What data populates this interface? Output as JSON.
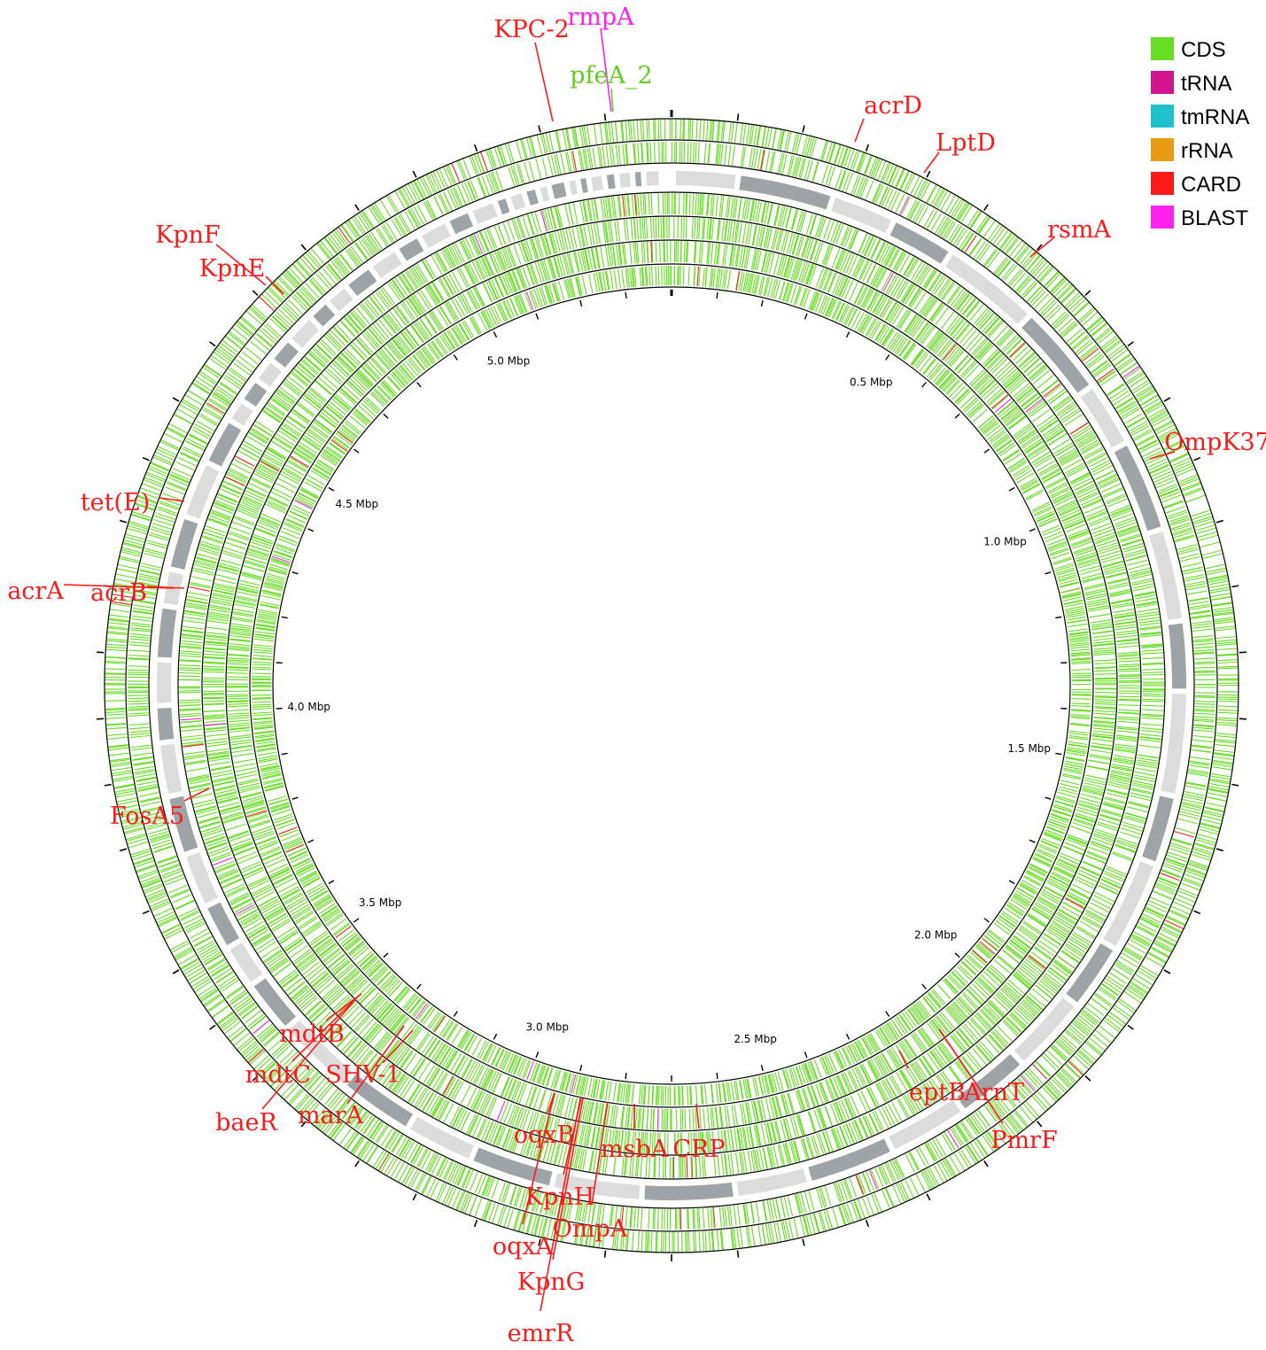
{
  "legend": [
    {
      "label": "CDS",
      "color": "#66dd22"
    },
    {
      "label": "tRNA",
      "color": "#d4148c"
    },
    {
      "label": "tmRNA",
      "color": "#20c0cc"
    },
    {
      "label": "rRNA",
      "color": "#e89a14"
    },
    {
      "label": "CARD",
      "color": "#ff1a1a"
    },
    {
      "label": "BLAST",
      "color": "#ff22ee"
    }
  ],
  "genome": {
    "total_mbp": 5.4,
    "scale_labels": [
      "0.5 Mbp",
      "1.0 Mbp",
      "1.5 Mbp",
      "2.0 Mbp",
      "2.5 Mbp",
      "3.0 Mbp",
      "3.5 Mbp",
      "4.0 Mbp",
      "4.5 Mbp",
      "5.0 Mbp"
    ],
    "scale_positions_mbp": [
      0.5,
      1.0,
      1.5,
      2.0,
      2.5,
      3.0,
      3.5,
      4.0,
      4.5,
      5.0
    ]
  },
  "colors": {
    "cds": "#66dd22",
    "card": "#ff1a1a",
    "blast": "#ff22ee",
    "contig_dark": "#9ea3a8",
    "contig_light": "#dcdcdc",
    "ring": "#000000"
  },
  "genes": [
    {
      "label": "KPC-2",
      "color": "#ff1a1a",
      "angle": -15
    },
    {
      "label": "rmpA",
      "color": "#ff22ee",
      "angle": -9
    },
    {
      "label": "pfeA_2",
      "color": "#66cc22",
      "angle": -8
    },
    {
      "label": "acrD",
      "color": "#ff1a1a",
      "angle": 24
    },
    {
      "label": "LptD",
      "color": "#ff1a1a",
      "angle": 35
    },
    {
      "label": "rsmA",
      "color": "#ff1a1a",
      "angle": 49
    },
    {
      "label": "OmpK37",
      "color": "#ff1a1a",
      "angle": 72
    },
    {
      "label": "eptB",
      "color": "#ff1a1a",
      "angle": 153
    },
    {
      "label": "ArnT",
      "color": "#ff1a1a",
      "angle": 150
    },
    {
      "label": "PmrF",
      "color": "#ff1a1a",
      "angle": 150
    },
    {
      "label": "CRP",
      "color": "#ff1a1a",
      "angle": 172
    },
    {
      "label": "msbA",
      "color": "#ff1a1a",
      "angle": 182
    },
    {
      "label": "OmpA",
      "color": "#ff1a1a",
      "angle": 187
    },
    {
      "label": "KpnH",
      "color": "#ff1a1a",
      "angle": 192
    },
    {
      "label": "oqxB",
      "color": "#ff1a1a",
      "angle": 195
    },
    {
      "label": "KpnG",
      "color": "#ff1a1a",
      "angle": 192
    },
    {
      "label": "oqxA",
      "color": "#ff1a1a",
      "angle": 195
    },
    {
      "label": "emrR",
      "color": "#ff1a1a",
      "angle": 191
    },
    {
      "label": "SHV-1",
      "color": "#ff1a1a",
      "angle": 207
    },
    {
      "label": "marA",
      "color": "#ff1a1a",
      "angle": 209
    },
    {
      "label": "mdtB",
      "color": "#ff1a1a",
      "angle": 218
    },
    {
      "label": "mdtC",
      "color": "#ff1a1a",
      "angle": 218
    },
    {
      "label": "baeR",
      "color": "#ff1a1a",
      "angle": 218
    },
    {
      "label": "FosA5",
      "color": "#ff1a1a",
      "angle": 243
    },
    {
      "label": "acrA",
      "color": "#ff1a1a",
      "angle": 271
    },
    {
      "label": "acrB",
      "color": "#ff1a1a",
      "angle": 271
    },
    {
      "label": "tet(E)",
      "color": "#ff1a1a",
      "angle": 287
    },
    {
      "label": "KpnF",
      "color": "#ff1a1a",
      "angle": 314
    },
    {
      "label": "KpnE",
      "color": "#ff1a1a",
      "angle": 314
    }
  ]
}
